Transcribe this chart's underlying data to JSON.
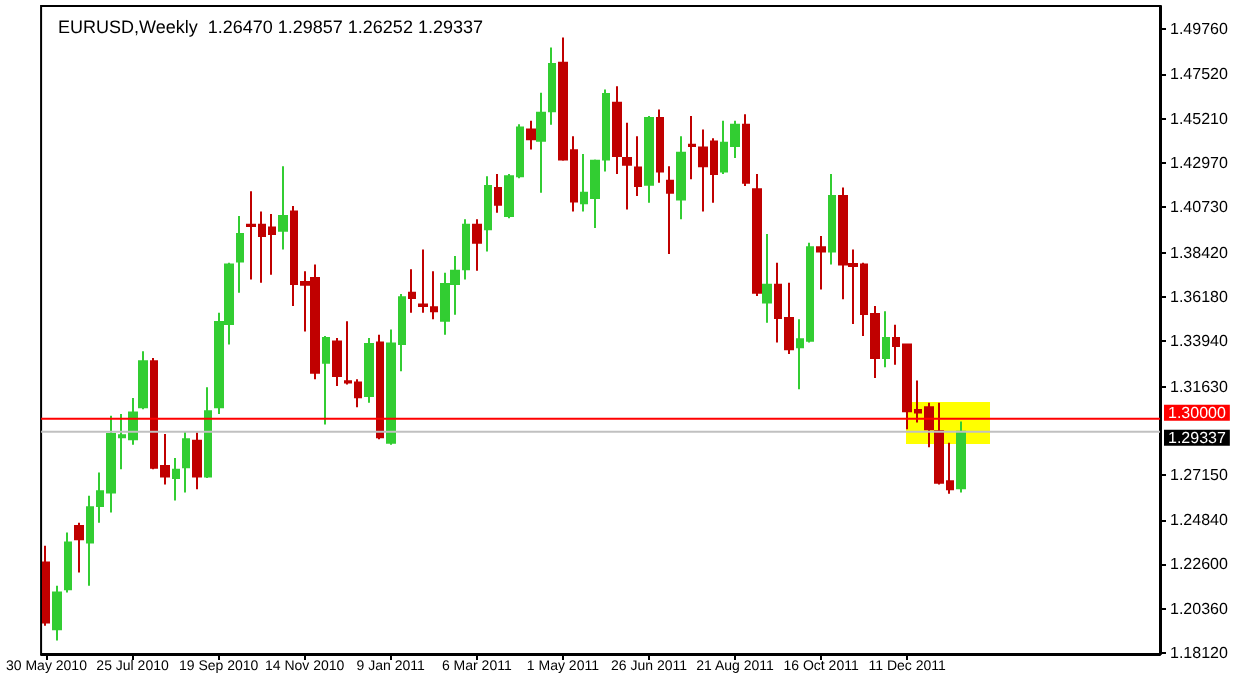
{
  "chart_data": {
    "type": "candlestick",
    "title": "EURUSD,Weekly  1.26470 1.29857 1.26252 1.29337",
    "categories": [
      "30 May 2010",
      null,
      null,
      null,
      null,
      null,
      null,
      null,
      "25 Jul 2010",
      null,
      null,
      null,
      null,
      null,
      null,
      null,
      "19 Sep 2010",
      null,
      null,
      null,
      null,
      null,
      null,
      null,
      "14 Nov 2010",
      null,
      null,
      null,
      null,
      null,
      null,
      null,
      "9 Jan 2011",
      null,
      null,
      null,
      null,
      null,
      null,
      null,
      "6 Mar 2011",
      null,
      null,
      null,
      null,
      null,
      null,
      null,
      "1 May 2011",
      null,
      null,
      null,
      null,
      null,
      null,
      null,
      "26 Jun 2011",
      null,
      null,
      null,
      null,
      null,
      null,
      null,
      "21 Aug 2011",
      null,
      null,
      null,
      null,
      null,
      null,
      null,
      "16 Oct 2011",
      null,
      null,
      null,
      null,
      null,
      null,
      null,
      "11 Dec 2011",
      null,
      null,
      null,
      null,
      null,
      null,
      null,
      null,
      null,
      null,
      null,
      null,
      null,
      null,
      null,
      null,
      null,
      null,
      null,
      null,
      null,
      null,
      null
    ],
    "ohlc": [
      [
        1.2269,
        1.2354,
        1.1948,
        1.1965
      ],
      [
        1.1931,
        1.2151,
        1.1874,
        1.2117
      ],
      [
        1.2134,
        1.2422,
        1.2117,
        1.2371
      ],
      [
        1.2455,
        1.2472,
        1.2219,
        1.2388
      ],
      [
        1.2371,
        1.2608,
        1.2151,
        1.255
      ],
      [
        1.2557,
        1.2726,
        1.2472,
        1.2631
      ],
      [
        1.2625,
        1.3014,
        1.2523,
        1.2922
      ],
      [
        1.2905,
        1.3024,
        1.2743,
        1.2915
      ],
      [
        1.2895,
        1.3105,
        1.2868,
        1.3031
      ],
      [
        1.3058,
        1.3342,
        1.3048,
        1.3291
      ],
      [
        1.3291,
        1.3308,
        1.2743,
        1.275
      ],
      [
        1.276,
        1.2922,
        1.2665,
        1.2706
      ],
      [
        1.2699,
        1.28,
        1.2584,
        1.274
      ],
      [
        1.2753,
        1.2936,
        1.2625,
        1.2895
      ],
      [
        1.2888,
        1.2929,
        1.2641,
        1.2706
      ],
      [
        1.2706,
        1.3159,
        1.2699,
        1.3037
      ],
      [
        1.3058,
        1.3538,
        1.3024,
        1.3491
      ],
      [
        1.348,
        1.3792,
        1.3376,
        1.3782
      ],
      [
        1.3798,
        1.4029,
        1.3639,
        1.3937
      ],
      [
        1.3985,
        1.4154,
        1.3707,
        1.3978
      ],
      [
        1.3985,
        1.4052,
        1.369,
        1.3927
      ],
      [
        1.3971,
        1.4039,
        1.3731,
        1.3937
      ],
      [
        1.3954,
        1.4282,
        1.3859,
        1.4029
      ],
      [
        1.4052,
        1.4079,
        1.3572,
        1.3683
      ],
      [
        1.3694,
        1.3748,
        1.3443,
        1.368
      ],
      [
        1.3714,
        1.3782,
        1.32,
        1.3233
      ],
      [
        1.3284,
        1.3419,
        1.297,
        1.3409
      ],
      [
        1.3392,
        1.3409,
        1.3166,
        1.3217
      ],
      [
        1.319,
        1.3494,
        1.3173,
        1.3183
      ],
      [
        1.3183,
        1.32,
        1.3058,
        1.3108
      ],
      [
        1.3115,
        1.3409,
        1.3081,
        1.3379
      ],
      [
        1.3386,
        1.3426,
        1.2895,
        1.2905
      ],
      [
        1.2878,
        1.3453,
        1.2868,
        1.3382
      ],
      [
        1.3379,
        1.3633,
        1.324,
        1.3616
      ],
      [
        1.3639,
        1.3758,
        1.3538,
        1.3612
      ],
      [
        1.3579,
        1.3859,
        1.3538,
        1.3572
      ],
      [
        1.3565,
        1.3748,
        1.3504,
        1.3545
      ],
      [
        1.3497,
        1.3741,
        1.3426,
        1.3683
      ],
      [
        1.3683,
        1.3826,
        1.3528,
        1.3751
      ],
      [
        1.3758,
        1.4012,
        1.3707,
        1.3985
      ],
      [
        1.3985,
        1.4012,
        1.3751,
        1.3893
      ],
      [
        1.3961,
        1.4231,
        1.3849,
        1.4181
      ],
      [
        1.4171,
        1.4242,
        1.4045,
        1.4086
      ],
      [
        1.4029,
        1.4242,
        1.4018,
        1.4231
      ],
      [
        1.4231,
        1.4495,
        1.4221,
        1.4478
      ],
      [
        1.4468,
        1.4512,
        1.4367,
        1.4418
      ],
      [
        1.4411,
        1.4654,
        1.4147,
        1.4553
      ],
      [
        1.456,
        1.4884,
        1.4492,
        1.48
      ],
      [
        1.4807,
        1.4935,
        1.4309,
        1.4316
      ],
      [
        1.4363,
        1.4434,
        1.4052,
        1.4103
      ],
      [
        1.4093,
        1.4343,
        1.4052,
        1.4147
      ],
      [
        1.412,
        1.4316,
        1.3968,
        1.4309
      ],
      [
        1.4316,
        1.4671,
        1.4255,
        1.4648
      ],
      [
        1.4604,
        1.4688,
        1.4242,
        1.4333
      ],
      [
        1.4323,
        1.4502,
        1.4062,
        1.4289
      ],
      [
        1.4275,
        1.4434,
        1.413,
        1.4181
      ],
      [
        1.4188,
        1.4536,
        1.4096,
        1.4526
      ],
      [
        1.4526,
        1.457,
        1.4198,
        1.4255
      ],
      [
        1.4208,
        1.4282,
        1.3836,
        1.4147
      ],
      [
        1.4113,
        1.4434,
        1.4012,
        1.435
      ],
      [
        1.439,
        1.4536,
        1.4215,
        1.4384
      ],
      [
        1.4377,
        1.4468,
        1.4052,
        1.4282
      ],
      [
        1.4407,
        1.4424,
        1.4096,
        1.4242
      ],
      [
        1.4255,
        1.4512,
        1.4242,
        1.4401
      ],
      [
        1.4384,
        1.4512,
        1.4323,
        1.4492
      ],
      [
        1.4492,
        1.4546,
        1.4181,
        1.4198
      ],
      [
        1.4164,
        1.4242,
        1.3623,
        1.3639
      ],
      [
        1.3589,
        1.3937,
        1.3487,
        1.368
      ],
      [
        1.368,
        1.3792,
        1.3386,
        1.3511
      ],
      [
        1.3511,
        1.369,
        1.3328,
        1.3352
      ],
      [
        1.3362,
        1.3504,
        1.3149,
        1.3403
      ],
      [
        1.3396,
        1.3893,
        1.3386,
        1.387
      ],
      [
        1.387,
        1.3927,
        1.3656,
        1.3849
      ],
      [
        1.3849,
        1.4242,
        1.3782,
        1.413
      ],
      [
        1.413,
        1.4174,
        1.3606,
        1.3782
      ],
      [
        1.3785,
        1.3859,
        1.348,
        1.3775
      ],
      [
        1.3782,
        1.3792,
        1.342,
        1.3531
      ],
      [
        1.3531,
        1.3572,
        1.3206,
        1.3308
      ],
      [
        1.3308,
        1.3545,
        1.3261,
        1.3409
      ],
      [
        1.3409,
        1.3477,
        1.3274,
        1.3369
      ],
      [
        1.3376,
        1.3376,
        1.2946,
        1.3037
      ],
      [
        1.3044,
        1.3193,
        1.298,
        1.3031
      ],
      [
        1.3058,
        1.3081,
        1.2855,
        1.2946
      ],
      [
        1.2936,
        1.3081,
        1.2665,
        1.2675
      ],
      [
        1.2682,
        1.2878,
        1.2618,
        1.2641
      ],
      [
        1.2647,
        1.29857,
        1.26252,
        1.29337
      ],
      null,
      null,
      null,
      null,
      null,
      null,
      null,
      null,
      null,
      null,
      null,
      null,
      null,
      null,
      null,
      null,
      null,
      null
    ],
    "colors": [
      "#c00000",
      "#32cd32",
      "#32cd32",
      "#c00000",
      "#32cd32",
      "#32cd32",
      "#32cd32",
      "#32cd32",
      "#32cd32",
      "#32cd32",
      "#c00000",
      "#c00000",
      "#32cd32",
      "#32cd32",
      "#c00000",
      "#32cd32",
      "#32cd32",
      "#32cd32",
      "#32cd32",
      "#c00000",
      "#c00000",
      "#c00000",
      "#32cd32",
      "#c00000",
      "#c00000",
      "#c00000",
      "#32cd32",
      "#c00000",
      "#c00000",
      "#c00000",
      "#32cd32",
      "#c00000",
      "#32cd32",
      "#32cd32",
      "#c00000",
      "#c00000",
      "#c00000",
      "#32cd32",
      "#32cd32",
      "#32cd32",
      "#c00000",
      "#32cd32",
      "#c00000",
      "#32cd32",
      "#32cd32",
      "#c00000",
      "#32cd32",
      "#32cd32",
      "#c00000",
      "#c00000",
      "#32cd32",
      "#32cd32",
      "#32cd32",
      "#c00000",
      "#c00000",
      "#c00000",
      "#32cd32",
      "#c00000",
      "#c00000",
      "#32cd32",
      "#c00000",
      "#c00000",
      "#c00000",
      "#32cd32",
      "#32cd32",
      "#c00000",
      "#c00000",
      "#32cd32",
      "#c00000",
      "#c00000",
      "#32cd32",
      "#32cd32",
      "#c00000",
      "#32cd32",
      "#c00000",
      "#c00000",
      "#c00000",
      "#c00000",
      "#32cd32",
      "#c00000",
      "#c00000",
      "#c00000",
      "#c00000",
      "#c00000",
      "#c00000",
      "#32cd32",
      null,
      null,
      null,
      null,
      null,
      null,
      null,
      null,
      null,
      null,
      null,
      null,
      null,
      null,
      null,
      null,
      null,
      null
    ],
    "ylim": [
      1.1805,
      1.5095
    ],
    "yticks": [
      {
        "value": 1.1812,
        "label": "1.18120"
      },
      {
        "value": 1.2036,
        "label": "1.20360"
      },
      {
        "value": 1.226,
        "label": "1.22600"
      },
      {
        "value": 1.2484,
        "label": "1.24840"
      },
      {
        "value": 1.2715,
        "label": "1.27150"
      },
      {
        "value": 1.3163,
        "label": "1.31630"
      },
      {
        "value": 1.3394,
        "label": "1.33940"
      },
      {
        "value": 1.3618,
        "label": "1.36180"
      },
      {
        "value": 1.3842,
        "label": "1.38420"
      },
      {
        "value": 1.4073,
        "label": "1.40730"
      },
      {
        "value": 1.4297,
        "label": "1.42970"
      },
      {
        "value": 1.4521,
        "label": "1.45210"
      },
      {
        "value": 1.4752,
        "label": "1.47520"
      },
      {
        "value": 1.4976,
        "label": "1.49760"
      }
    ],
    "ref_lines": [
      {
        "axis": "y",
        "value": 1.3,
        "label": "1.30000",
        "color": "#ff0000"
      },
      {
        "axis": "y",
        "value": 1.29337,
        "label": "1.29337",
        "color": "#c0c0c0"
      }
    ],
    "grid": false
  }
}
